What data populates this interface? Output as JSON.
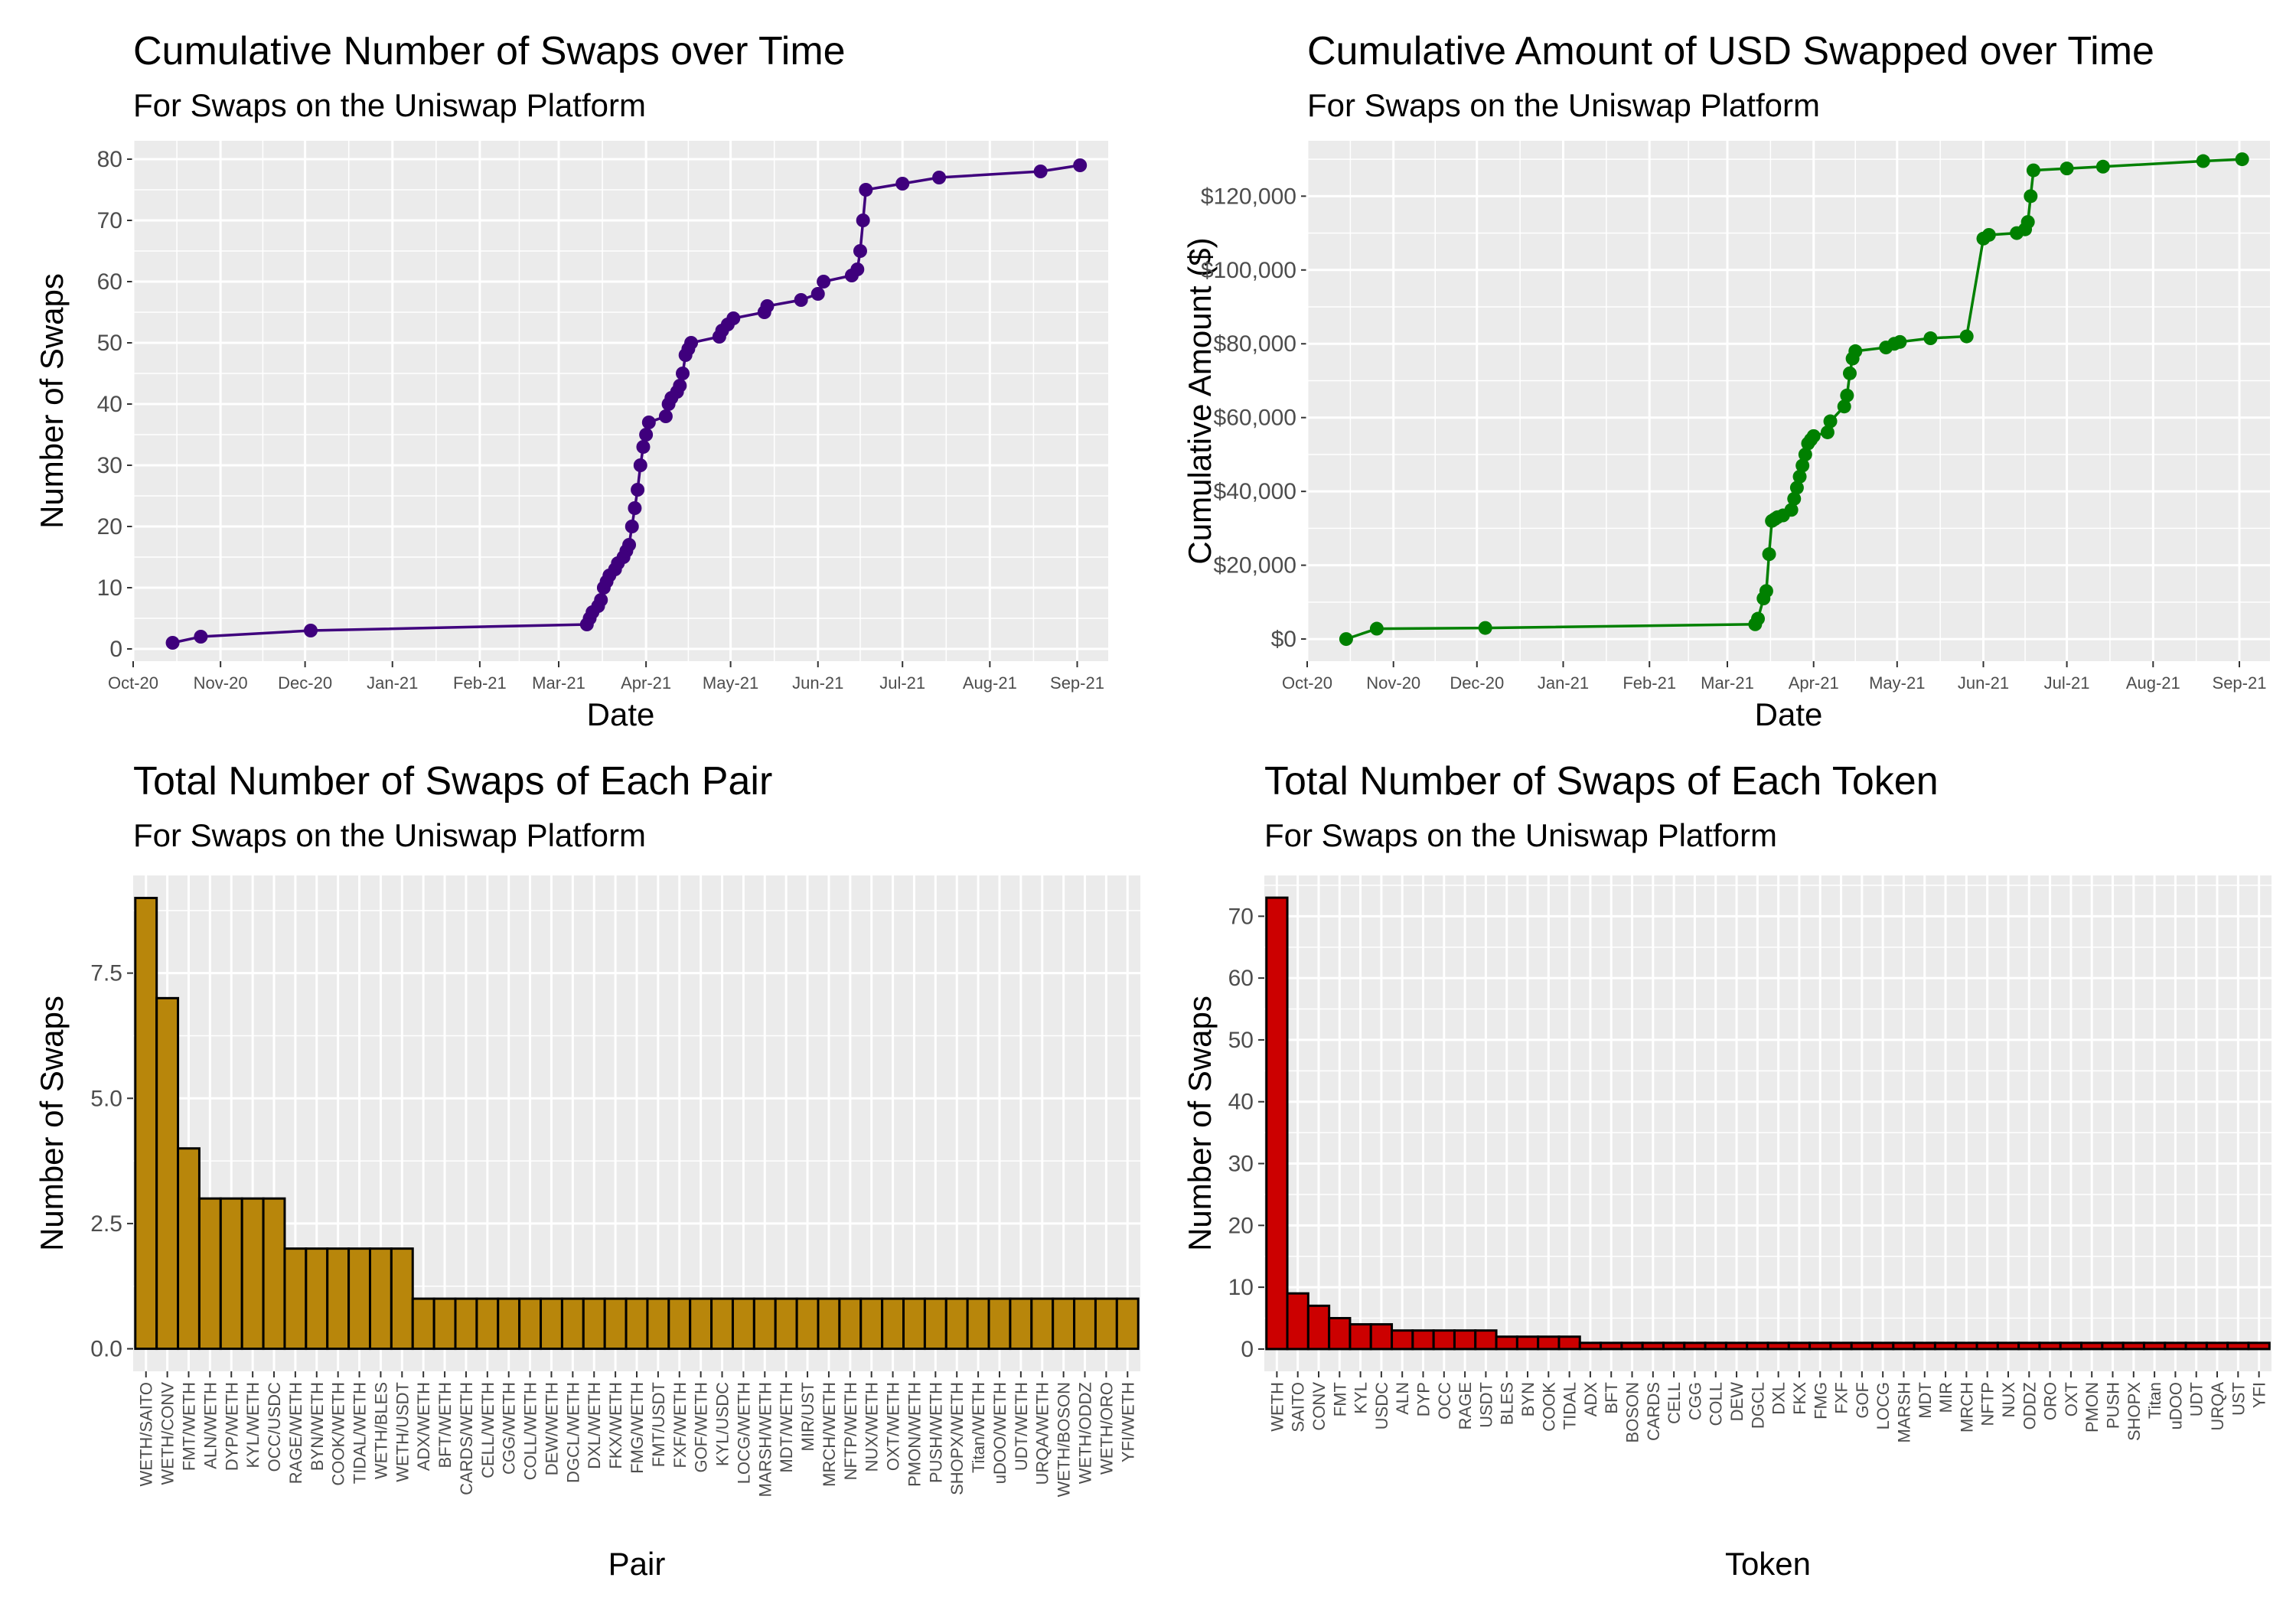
{
  "chart_data": [
    {
      "id": "cum-swaps",
      "type": "line",
      "title": "Cumulative Number of Swaps over Time",
      "subtitle": "For Swaps on the Uniswap Platform",
      "xlabel": "Date",
      "ylabel": "Number of Swaps",
      "x_ticks": [
        "Oct-20",
        "Nov-20",
        "Dec-20",
        "Jan-21",
        "Feb-21",
        "Mar-21",
        "Apr-21",
        "May-21",
        "Jun-21",
        "Jul-21",
        "Aug-21",
        "Sep-21"
      ],
      "y_ticks": [
        "0",
        "10",
        "20",
        "30",
        "40",
        "50",
        "60",
        "70",
        "80"
      ],
      "xlim": [
        "2020-10-01",
        "2021-09-12"
      ],
      "ylim": [
        -2,
        83
      ],
      "color": "#3F007D",
      "grid": true,
      "series": [
        {
          "x": [
            "2020-10-15",
            "2020-10-25",
            "2020-12-03",
            "2021-03-11",
            "2021-03-12",
            "2021-03-13",
            "2021-03-15",
            "2021-03-16",
            "2021-03-17",
            "2021-03-18",
            "2021-03-19",
            "2021-03-21",
            "2021-03-22",
            "2021-03-24",
            "2021-03-25",
            "2021-03-26",
            "2021-03-27",
            "2021-03-28",
            "2021-03-29",
            "2021-03-30",
            "2021-03-31",
            "2021-04-01",
            "2021-04-02",
            "2021-04-08",
            "2021-04-09",
            "2021-04-10",
            "2021-04-12",
            "2021-04-13",
            "2021-04-14",
            "2021-04-15",
            "2021-04-16",
            "2021-04-17",
            "2021-04-27",
            "2021-04-28",
            "2021-04-30",
            "2021-05-02",
            "2021-05-13",
            "2021-05-14",
            "2021-05-26",
            "2021-06-01",
            "2021-06-03",
            "2021-06-13",
            "2021-06-15",
            "2021-06-16",
            "2021-06-17",
            "2021-06-18",
            "2021-07-01",
            "2021-07-14",
            "2021-08-19",
            "2021-09-02"
          ],
          "y": [
            1,
            2,
            3,
            4,
            5,
            6,
            7,
            8,
            10,
            11,
            12,
            13,
            14,
            15,
            16,
            17,
            20,
            23,
            26,
            30,
            33,
            35,
            37,
            38,
            40,
            41,
            42,
            43,
            45,
            48,
            49,
            50,
            51,
            52,
            53,
            54,
            55,
            56,
            57,
            58,
            60,
            61,
            62,
            65,
            70,
            75,
            76,
            77,
            78,
            79
          ]
        }
      ]
    },
    {
      "id": "cum-usd",
      "type": "line",
      "title": "Cumulative Amount of USD Swapped over Time",
      "subtitle": "For Swaps on the Uniswap Platform",
      "xlabel": "Date",
      "ylabel": "Cumulative Amount ($)",
      "x_ticks": [
        "Oct-20",
        "Nov-20",
        "Dec-20",
        "Jan-21",
        "Feb-21",
        "Mar-21",
        "Apr-21",
        "May-21",
        "Jun-21",
        "Jul-21",
        "Aug-21",
        "Sep-21"
      ],
      "y_ticks": [
        "$0",
        "$20,000",
        "$40,000",
        "$60,000",
        "$80,000",
        "$100,000",
        "$120,000"
      ],
      "xlim": [
        "2020-10-01",
        "2021-09-12"
      ],
      "ylim": [
        -6000,
        135000
      ],
      "color": "#008000",
      "grid": true,
      "series": [
        {
          "x": [
            "2020-10-15",
            "2020-10-26",
            "2020-12-04",
            "2021-03-11",
            "2021-03-12",
            "2021-03-14",
            "2021-03-15",
            "2021-03-16",
            "2021-03-17",
            "2021-03-18",
            "2021-03-19",
            "2021-03-21",
            "2021-03-24",
            "2021-03-25",
            "2021-03-26",
            "2021-03-27",
            "2021-03-28",
            "2021-03-29",
            "2021-03-30",
            "2021-03-31",
            "2021-04-01",
            "2021-04-06",
            "2021-04-07",
            "2021-04-12",
            "2021-04-13",
            "2021-04-14",
            "2021-04-15",
            "2021-04-16",
            "2021-04-27",
            "2021-04-30",
            "2021-05-02",
            "2021-05-13",
            "2021-05-26",
            "2021-06-01",
            "2021-06-03",
            "2021-06-13",
            "2021-06-16",
            "2021-06-17",
            "2021-06-18",
            "2021-06-19",
            "2021-07-01",
            "2021-07-14",
            "2021-08-19",
            "2021-09-02"
          ],
          "y": [
            0,
            2800,
            3000,
            4000,
            5500,
            11000,
            13000,
            23000,
            32000,
            32500,
            33000,
            33500,
            35000,
            38000,
            41000,
            44000,
            47000,
            50000,
            53000,
            54000,
            55000,
            56000,
            59000,
            63000,
            66000,
            72000,
            76000,
            78000,
            79000,
            80000,
            80500,
            81500,
            82000,
            108500,
            109500,
            110000,
            111000,
            113000,
            120000,
            127000,
            127500,
            128000,
            129500,
            130000
          ]
        }
      ]
    },
    {
      "id": "pair-bars",
      "type": "bar",
      "title": "Total Number of Swaps of Each Pair",
      "subtitle": "For Swaps on the Uniswap Platform",
      "xlabel": "Pair",
      "ylabel": "Number of Swaps",
      "y_ticks": [
        "0.0",
        "2.5",
        "5.0",
        "7.5"
      ],
      "ylim": [
        -0.45,
        9.45
      ],
      "color": "#B8860B",
      "grid": true,
      "categories": [
        "WETH/SAITO",
        "WETH/CONV",
        "FMT/WETH",
        "ALN/WETH",
        "DYP/WETH",
        "KYL/WETH",
        "OCC/USDC",
        "RAGE/WETH",
        "BYN/WETH",
        "COOK/WETH",
        "TIDAL/WETH",
        "WETH/BLES",
        "WETH/USDT",
        "ADX/WETH",
        "BFT/WETH",
        "CARDS/WETH",
        "CELL/WETH",
        "CGG/WETH",
        "COLL/WETH",
        "DEW/WETH",
        "DGCL/WETH",
        "DXL/WETH",
        "FKX/WETH",
        "FMG/WETH",
        "FMT/USDT",
        "FXF/WETH",
        "GOF/WETH",
        "KYL/USDC",
        "LOCG/WETH",
        "MARSH/WETH",
        "MDT/WETH",
        "MIR/UST",
        "MRCH/WETH",
        "NFTP/WETH",
        "NUX/WETH",
        "OXT/WETH",
        "PMON/WETH",
        "PUSH/WETH",
        "SHOPX/WETH",
        "Titan/WETH",
        "uDOO/WETH",
        "UDT/WETH",
        "URQA/WETH",
        "WETH/BOSON",
        "WETH/ODDZ",
        "WETH/ORO",
        "YFI/WETH"
      ],
      "values": [
        9,
        7,
        4,
        3,
        3,
        3,
        3,
        2,
        2,
        2,
        2,
        2,
        2,
        1,
        1,
        1,
        1,
        1,
        1,
        1,
        1,
        1,
        1,
        1,
        1,
        1,
        1,
        1,
        1,
        1,
        1,
        1,
        1,
        1,
        1,
        1,
        1,
        1,
        1,
        1,
        1,
        1,
        1,
        1,
        1,
        1,
        1
      ]
    },
    {
      "id": "token-bars",
      "type": "bar",
      "title": "Total Number of Swaps of Each Token",
      "subtitle": "For Swaps on the Uniswap Platform",
      "xlabel": "Token",
      "ylabel": "Number of Swaps",
      "y_ticks": [
        "0",
        "10",
        "20",
        "30",
        "40",
        "50",
        "60",
        "70"
      ],
      "ylim": [
        -3.6,
        76.6
      ],
      "color": "#CC0000",
      "grid": true,
      "categories": [
        "WETH",
        "SAITO",
        "CONV",
        "FMT",
        "KYL",
        "USDC",
        "ALN",
        "DYP",
        "OCC",
        "RAGE",
        "USDT",
        "BLES",
        "BYN",
        "COOK",
        "TIDAL",
        "ADX",
        "BFT",
        "BOSON",
        "CARDS",
        "CELL",
        "CGG",
        "COLL",
        "DEW",
        "DGCL",
        "DXL",
        "FKX",
        "FMG",
        "FXF",
        "GOF",
        "LOCG",
        "MARSH",
        "MDT",
        "MIR",
        "MRCH",
        "NFTP",
        "NUX",
        "ODDZ",
        "ORO",
        "OXT",
        "PMON",
        "PUSH",
        "SHOPX",
        "Titan",
        "uDOO",
        "UDT",
        "URQA",
        "UST",
        "YFI"
      ],
      "values": [
        73,
        9,
        7,
        5,
        4,
        4,
        3,
        3,
        3,
        3,
        3,
        2,
        2,
        2,
        2,
        1,
        1,
        1,
        1,
        1,
        1,
        1,
        1,
        1,
        1,
        1,
        1,
        1,
        1,
        1,
        1,
        1,
        1,
        1,
        1,
        1,
        1,
        1,
        1,
        1,
        1,
        1,
        1,
        1,
        1,
        1,
        1,
        1
      ]
    }
  ]
}
